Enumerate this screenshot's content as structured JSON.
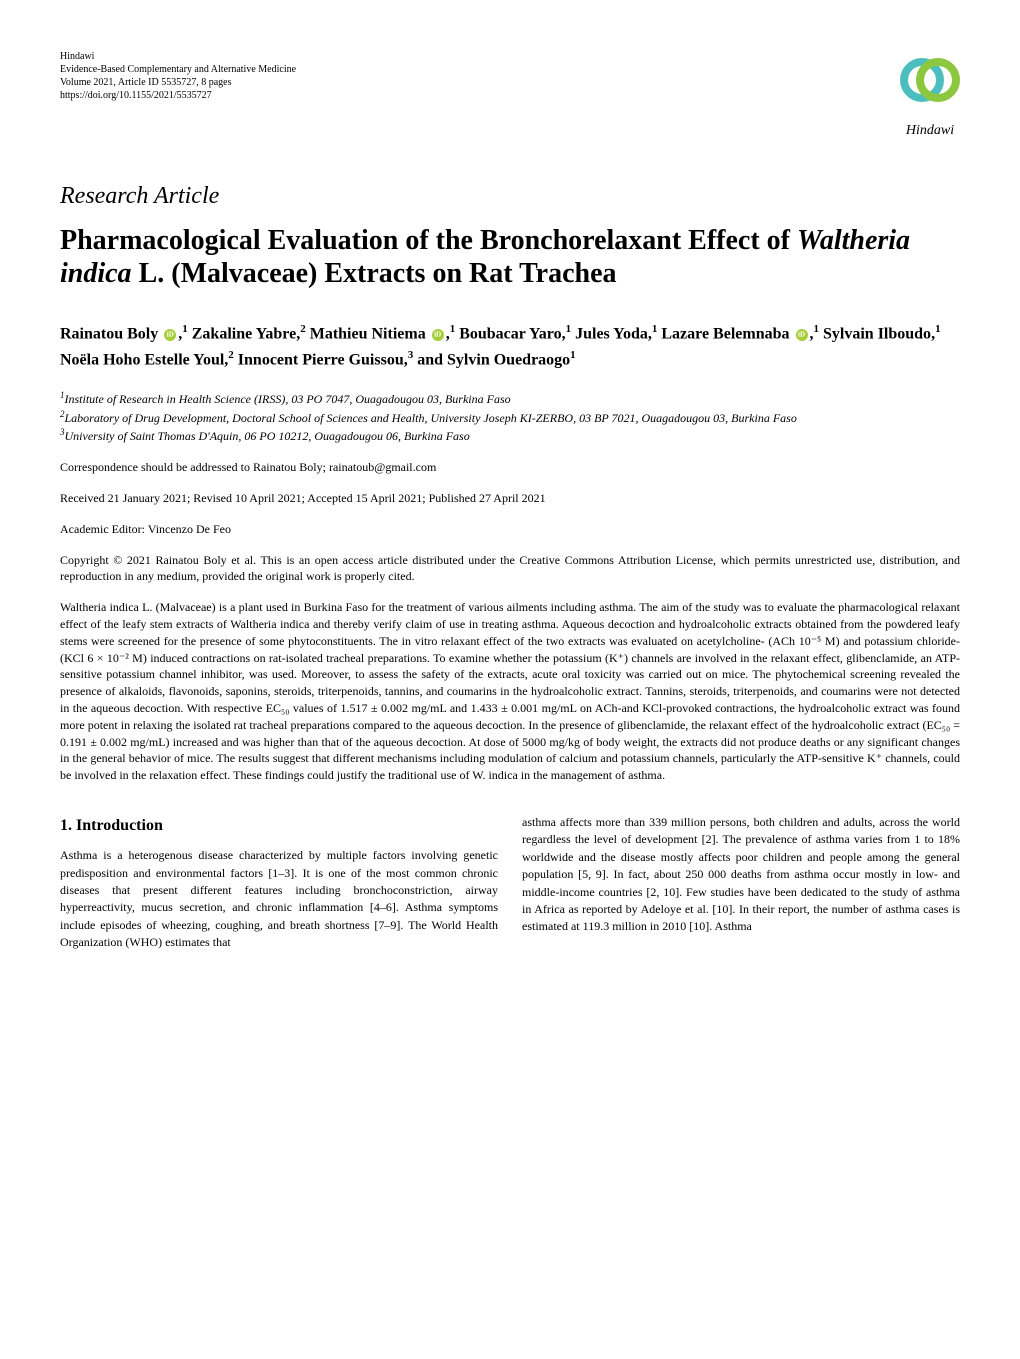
{
  "journal": {
    "publisher": "Hindawi",
    "name": "Evidence-Based Complementary and Alternative Medicine",
    "volume": "Volume 2021, Article ID 5535727, 8 pages",
    "doi": "https://doi.org/10.1155/2021/5535727",
    "logo_text": "Hindawi"
  },
  "article_type": "Research Article",
  "title_parts": {
    "prefix": "Pharmacological Evaluation of the Bronchorelaxant Effect of ",
    "species": "Waltheria indica",
    "suffix": " L. (Malvaceae) Extracts on Rat Trachea"
  },
  "authors": [
    {
      "name": "Rainatou Boly",
      "orcid": true,
      "sup": "1",
      "trailing": ","
    },
    {
      "name": "Zakaline Yabre",
      "orcid": false,
      "sup": "2",
      "trailing": ","
    },
    {
      "name": "Mathieu Nitiema",
      "orcid": true,
      "sup": "1",
      "trailing": ","
    },
    {
      "name": "Boubacar Yaro",
      "orcid": false,
      "sup": "1",
      "trailing": ","
    },
    {
      "name": "Jules Yoda",
      "orcid": false,
      "sup": "1",
      "trailing": ","
    },
    {
      "name": "Lazare Belemnaba",
      "orcid": true,
      "sup": "1",
      "trailing": ","
    },
    {
      "name": "Sylvain Ilboudo",
      "orcid": false,
      "sup": "1",
      "trailing": ","
    },
    {
      "name": "Noëla Hoho Estelle Youl",
      "orcid": false,
      "sup": "2",
      "trailing": ","
    },
    {
      "name": "Innocent Pierre Guissou",
      "orcid": false,
      "sup": "3",
      "trailing": ","
    },
    {
      "name": "and Sylvin Ouedraogo",
      "orcid": false,
      "sup": "1",
      "trailing": ""
    }
  ],
  "affiliations": [
    {
      "num": "1",
      "text": "Institute of Research in Health Science (IRSS), 03 PO 7047, Ouagadougou 03, Burkina Faso"
    },
    {
      "num": "2",
      "text": "Laboratory of Drug Development, Doctoral School of Sciences and Health, University Joseph KI-ZERBO, 03 BP 7021, Ouagadougou 03, Burkina Faso"
    },
    {
      "num": "3",
      "text": "University of Saint Thomas D'Aquin, 06 PO 10212, Ouagadougou 06, Burkina Faso"
    }
  ],
  "correspondence": "Correspondence should be addressed to Rainatou Boly; rainatoub@gmail.com",
  "dates": "Received 21 January 2021; Revised 10 April 2021; Accepted 15 April 2021; Published 27 April 2021",
  "editor": "Academic Editor: Vincenzo De Feo",
  "copyright": "Copyright © 2021 Rainatou Boly et al. This is an open access article distributed under the Creative Commons Attribution License, which permits unrestricted use, distribution, and reproduction in any medium, provided the original work is properly cited.",
  "abstract": "Waltheria indica L. (Malvaceae) is a plant used in Burkina Faso for the treatment of various ailments including asthma. The aim of the study was to evaluate the pharmacological relaxant effect of the leafy stem extracts of Waltheria indica and thereby verify claim of use in treating asthma. Aqueous decoction and hydroalcoholic extracts obtained from the powdered leafy stems were screened for the presence of some phytoconstituents. The in vitro relaxant effect of the two extracts was evaluated on acetylcholine- (ACh 10⁻⁵ M) and potassium chloride- (KCl 6 × 10⁻² M) induced contractions on rat-isolated tracheal preparations. To examine whether the potassium (K⁺) channels are involved in the relaxant effect, glibenclamide, an ATP-sensitive potassium channel inhibitor, was used. Moreover, to assess the safety of the extracts, acute oral toxicity was carried out on mice. The phytochemical screening revealed the presence of alkaloids, flavonoids, saponins, steroids, triterpenoids, tannins, and coumarins in the hydroalcoholic extract. Tannins, steroids, triterpenoids, and coumarins were not detected in the aqueous decoction. With respective EC₅₀ values of 1.517 ± 0.002 mg/mL and 1.433 ± 0.001 mg/mL on ACh-and KCl-provoked contractions, the hydroalcoholic extract was found more potent in relaxing the isolated rat tracheal preparations compared to the aqueous decoction. In the presence of glibenclamide, the relaxant effect of the hydroalcoholic extract (EC₅₀ = 0.191 ± 0.002 mg/mL) increased and was higher than that of the aqueous decoction. At dose of 5000 mg/kg of body weight, the extracts did not produce deaths or any significant changes in the general behavior of mice. The results suggest that different mechanisms including modulation of calcium and potassium channels, particularly the ATP-sensitive K⁺ channels, could be involved in the relaxation effect. These findings could justify the traditional use of W. indica in the management of asthma.",
  "section_heading": "1. Introduction",
  "intro_col1": "Asthma is a heterogenous disease characterized by multiple factors involving genetic predisposition and environmental factors [1–3]. It is one of the most common chronic diseases that present different features including bronchoconstriction, airway hyperreactivity, mucus secretion, and chronic inflammation [4–6]. Asthma symptoms include episodes of wheezing, coughing, and breath shortness [7–9]. The World Health Organization (WHO) estimates that",
  "intro_col2": "asthma affects more than 339 million persons, both children and adults, across the world regardless the level of development [2]. The prevalence of asthma varies from 1 to 18% worldwide and the disease mostly affects poor children and people among the general population [5, 9]. In fact, about 250 000 deaths from asthma occur mostly in low- and middle-income countries [2, 10]. Few studies have been dedicated to the study of asthma in Africa as reported by Adeloye et al. [10]. In their report, the number of asthma cases is estimated at 119.3 million in 2010 [10]. Asthma",
  "colors": {
    "text": "#000000",
    "background": "#ffffff",
    "orcid": "#a6ce39",
    "logo_teal": "#4dbec0",
    "logo_green": "#8dc63f"
  }
}
